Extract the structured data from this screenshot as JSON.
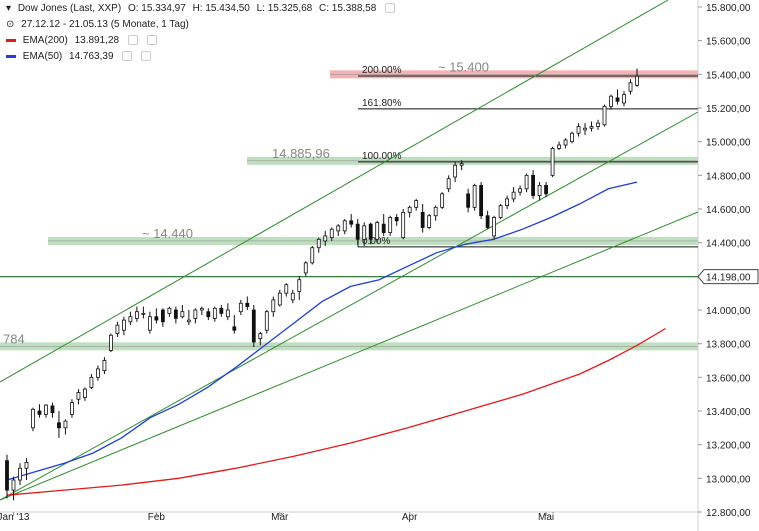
{
  "header": {
    "title": "Dow Jones (Last, XXP)",
    "ohlc": {
      "o": "O: 15.334,97",
      "h": "H: 15.434,50",
      "l": "L: 15.325,68",
      "c": "C: 15.388,58"
    },
    "range": "27.12.12 - 21.05.13 (5 Monate, 1 Tag)",
    "ema200": {
      "label": "EMA(200)",
      "value": "13.891,28",
      "color": "#e31a1c"
    },
    "ema50": {
      "label": "EMA(50)",
      "value": "14.763,39",
      "color": "#1f3fd6"
    }
  },
  "chart_data": {
    "type": "candlestick",
    "ylim": [
      12800,
      15800
    ],
    "y_ticks": [
      "15.800,00",
      "15.600,00",
      "15.400,00",
      "15.200,00",
      "15.000,00",
      "14.800,00",
      "14.600,00",
      "14.400,00",
      "14.200,00",
      "14.000,00",
      "13.800,00",
      "13.600,00",
      "13.400,00",
      "13.200,00",
      "13.000,00",
      "12.800,00"
    ],
    "x_labels": [
      "Jan '13",
      "Feb",
      "Mär",
      "Apr",
      "Mai"
    ],
    "price_label": "14.198,00",
    "price_label_value": 14198,
    "zones": [
      {
        "label": "~ 15.400",
        "value": 15400,
        "color": "#f4b3b3"
      },
      {
        "label": "14.885,96",
        "value": 14886,
        "color": "#bfe0bf"
      },
      {
        "label": "~ 14.440",
        "value": 14410,
        "color": "#bfe0bf"
      },
      {
        "label": "784",
        "value": 13784,
        "color": "#bfe0bf"
      }
    ],
    "fib": [
      {
        "label": "200.00%",
        "value": 15390
      },
      {
        "label": "161.80%",
        "value": 15195
      },
      {
        "label": "100.00%",
        "value": 14880
      },
      {
        "label": "0.00%",
        "value": 14375
      }
    ],
    "candles": [
      [
        13105,
        13140,
        12880,
        12930
      ],
      [
        12930,
        13010,
        12870,
        12990
      ],
      [
        12990,
        13090,
        12960,
        13060
      ],
      [
        13060,
        13120,
        12990,
        13095
      ],
      [
        13300,
        13420,
        13280,
        13410
      ],
      [
        13400,
        13440,
        13360,
        13380
      ],
      [
        13380,
        13440,
        13360,
        13435
      ],
      [
        13430,
        13450,
        13360,
        13390
      ],
      [
        13330,
        13400,
        13240,
        13300
      ],
      [
        13300,
        13350,
        13260,
        13340
      ],
      [
        13380,
        13470,
        13360,
        13450
      ],
      [
        13470,
        13530,
        13440,
        13510
      ],
      [
        13480,
        13540,
        13460,
        13530
      ],
      [
        13540,
        13620,
        13530,
        13600
      ],
      [
        13600,
        13670,
        13580,
        13650
      ],
      [
        13640,
        13720,
        13620,
        13700
      ],
      [
        13760,
        13860,
        13750,
        13850
      ],
      [
        13860,
        13930,
        13840,
        13910
      ],
      [
        13880,
        13960,
        13850,
        13940
      ],
      [
        13930,
        13990,
        13910,
        13960
      ],
      [
        13950,
        14020,
        13930,
        13990
      ],
      [
        13980,
        14020,
        13950,
        13980
      ],
      [
        13880,
        13990,
        13860,
        13960
      ],
      [
        13960,
        14010,
        13920,
        13940
      ],
      [
        14000,
        14010,
        13900,
        13930
      ],
      [
        13980,
        14020,
        13960,
        14010
      ],
      [
        14000,
        14020,
        13920,
        13950
      ],
      [
        13960,
        14030,
        13950,
        13990
      ],
      [
        13930,
        14000,
        13910,
        13940
      ],
      [
        13950,
        14010,
        13920,
        14000
      ],
      [
        14000,
        14020,
        13970,
        14010
      ],
      [
        13990,
        14010,
        13940,
        13960
      ],
      [
        13950,
        14020,
        13930,
        14010
      ],
      [
        14010,
        14030,
        13960,
        13980
      ],
      [
        13960,
        14040,
        13940,
        14000
      ],
      [
        13900,
        13970,
        13860,
        13880
      ],
      [
        13990,
        14060,
        13970,
        14040
      ],
      [
        14040,
        14080,
        14000,
        14020
      ],
      [
        14000,
        14030,
        13780,
        13810
      ],
      [
        13830,
        13870,
        13790,
        13860
      ],
      [
        13880,
        14000,
        13860,
        13990
      ],
      [
        13990,
        14080,
        13960,
        14060
      ],
      [
        14030,
        14120,
        14020,
        14100
      ],
      [
        14100,
        14160,
        14080,
        14150
      ],
      [
        14060,
        14120,
        14040,
        14100
      ],
      [
        14110,
        14200,
        14060,
        14180
      ],
      [
        14220,
        14290,
        14200,
        14280
      ],
      [
        14280,
        14380,
        14270,
        14370
      ],
      [
        14370,
        14430,
        14340,
        14420
      ],
      [
        14410,
        14470,
        14380,
        14440
      ],
      [
        14430,
        14490,
        14410,
        14480
      ],
      [
        14470,
        14510,
        14440,
        14500
      ],
      [
        14470,
        14540,
        14450,
        14530
      ],
      [
        14530,
        14570,
        14490,
        14510
      ],
      [
        14510,
        14540,
        14390,
        14420
      ],
      [
        14420,
        14520,
        14380,
        14500
      ],
      [
        14510,
        14520,
        14390,
        14420
      ],
      [
        14420,
        14530,
        14400,
        14520
      ],
      [
        14510,
        14570,
        14440,
        14460
      ],
      [
        14460,
        14560,
        14440,
        14550
      ],
      [
        14550,
        14570,
        14500,
        14530
      ],
      [
        14430,
        14600,
        14420,
        14580
      ],
      [
        14580,
        14620,
        14550,
        14610
      ],
      [
        14610,
        14660,
        14590,
        14650
      ],
      [
        14580,
        14630,
        14460,
        14490
      ],
      [
        14490,
        14570,
        14480,
        14560
      ],
      [
        14560,
        14620,
        14530,
        14610
      ],
      [
        14610,
        14700,
        14600,
        14690
      ],
      [
        14720,
        14800,
        14700,
        14780
      ],
      [
        14790,
        14880,
        14760,
        14860
      ],
      [
        14860,
        14890,
        14830,
        14870
      ],
      [
        14690,
        14720,
        14580,
        14610
      ],
      [
        14610,
        14750,
        14590,
        14740
      ],
      [
        14740,
        14760,
        14540,
        14560
      ],
      [
        14560,
        14590,
        14480,
        14490
      ],
      [
        14440,
        14560,
        14420,
        14550
      ],
      [
        14550,
        14630,
        14540,
        14620
      ],
      [
        14620,
        14680,
        14600,
        14660
      ],
      [
        14660,
        14730,
        14640,
        14700
      ],
      [
        14700,
        14740,
        14680,
        14720
      ],
      [
        14720,
        14810,
        14700,
        14800
      ],
      [
        14800,
        14830,
        14660,
        14680
      ],
      [
        14680,
        14760,
        14650,
        14740
      ],
      [
        14740,
        14760,
        14670,
        14690
      ],
      [
        14800,
        14970,
        14790,
        14960
      ],
      [
        14960,
        15000,
        14950,
        14980
      ],
      [
        14980,
        15020,
        14960,
        15010
      ],
      [
        15000,
        15060,
        14990,
        15050
      ],
      [
        15050,
        15110,
        15030,
        15090
      ],
      [
        15070,
        15110,
        15040,
        15080
      ],
      [
        15080,
        15120,
        15060,
        15090
      ],
      [
        15090,
        15130,
        15070,
        15110
      ],
      [
        15100,
        15220,
        15090,
        15210
      ],
      [
        15210,
        15280,
        15190,
        15270
      ],
      [
        15260,
        15310,
        15220,
        15240
      ],
      [
        15230,
        15300,
        15210,
        15280
      ],
      [
        15300,
        15370,
        15280,
        15350
      ],
      [
        15334.97,
        15434.5,
        15325.68,
        15388.58
      ]
    ],
    "ema50": [
      [
        0,
        12990
      ],
      [
        10,
        13040
      ],
      [
        20,
        13090
      ],
      [
        30,
        13150
      ],
      [
        40,
        13240
      ],
      [
        50,
        13360
      ],
      [
        60,
        13440
      ],
      [
        70,
        13540
      ],
      [
        80,
        13660
      ],
      [
        90,
        13790
      ],
      [
        100,
        13920
      ],
      [
        110,
        14050
      ],
      [
        120,
        14140
      ],
      [
        130,
        14180
      ],
      [
        140,
        14260
      ],
      [
        150,
        14340
      ],
      [
        160,
        14390
      ],
      [
        170,
        14420
      ],
      [
        180,
        14480
      ],
      [
        190,
        14550
      ],
      [
        200,
        14630
      ],
      [
        210,
        14720
      ],
      [
        220,
        14760
      ]
    ],
    "ema200": [
      [
        0,
        12900
      ],
      [
        20,
        12930
      ],
      [
        40,
        12960
      ],
      [
        60,
        13000
      ],
      [
        80,
        13060
      ],
      [
        100,
        13130
      ],
      [
        120,
        13210
      ],
      [
        140,
        13300
      ],
      [
        160,
        13400
      ],
      [
        180,
        13500
      ],
      [
        200,
        13620
      ],
      [
        210,
        13700
      ],
      [
        220,
        13790
      ],
      [
        230,
        13890
      ]
    ]
  }
}
